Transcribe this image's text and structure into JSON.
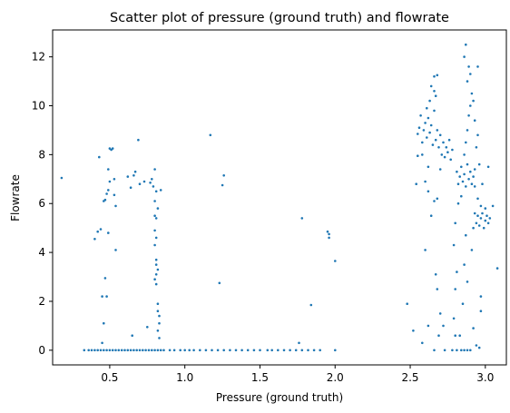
{
  "chart_data": {
    "type": "scatter",
    "title": "Scatter plot of pressure (ground truth) and flowrate",
    "xlabel": "Pressure (ground truth)",
    "ylabel": "Flowrate",
    "xlim": [
      0.12,
      3.14
    ],
    "ylim": [
      -0.6,
      13.1
    ],
    "xticks": [
      0.5,
      1.0,
      1.5,
      2.0,
      2.5,
      3.0
    ],
    "xtick_labels": [
      "0.5",
      "1.0",
      "1.5",
      "2.0",
      "2.5",
      "3.0"
    ],
    "yticks": [
      0,
      2,
      4,
      6,
      8,
      10,
      12
    ],
    "ytick_labels": [
      "0",
      "2",
      "4",
      "6",
      "8",
      "10",
      "12"
    ],
    "grid": false,
    "marker_color": "#1f77b4",
    "series": [
      {
        "values": [
          [
            0.33,
            0
          ],
          [
            0.36,
            0
          ],
          [
            0.38,
            0
          ],
          [
            0.4,
            0
          ],
          [
            0.42,
            0
          ],
          [
            0.44,
            0
          ],
          [
            0.46,
            0
          ],
          [
            0.48,
            0
          ],
          [
            0.5,
            0
          ],
          [
            0.52,
            0
          ],
          [
            0.54,
            0
          ],
          [
            0.56,
            0
          ],
          [
            0.58,
            0
          ],
          [
            0.6,
            0
          ],
          [
            0.62,
            0
          ],
          [
            0.64,
            0
          ],
          [
            0.66,
            0
          ],
          [
            0.68,
            0
          ],
          [
            0.7,
            0
          ],
          [
            0.72,
            0
          ],
          [
            0.74,
            0
          ],
          [
            0.76,
            0
          ],
          [
            0.78,
            0
          ],
          [
            0.8,
            0
          ],
          [
            0.82,
            0
          ],
          [
            0.84,
            0
          ],
          [
            0.86,
            0
          ],
          [
            0.9,
            0
          ],
          [
            0.93,
            0
          ],
          [
            0.97,
            0
          ],
          [
            1.0,
            0
          ],
          [
            1.03,
            0
          ],
          [
            1.06,
            0
          ],
          [
            1.1,
            0
          ],
          [
            1.14,
            0
          ],
          [
            1.18,
            0
          ],
          [
            1.22,
            0
          ],
          [
            1.26,
            0
          ],
          [
            1.3,
            0
          ],
          [
            1.34,
            0
          ],
          [
            1.38,
            0
          ],
          [
            1.42,
            0
          ],
          [
            1.46,
            0
          ],
          [
            1.5,
            0
          ],
          [
            1.55,
            0
          ],
          [
            1.58,
            0
          ],
          [
            1.62,
            0
          ],
          [
            1.66,
            0
          ],
          [
            1.7,
            0
          ],
          [
            1.74,
            0
          ],
          [
            1.78,
            0
          ],
          [
            1.82,
            0
          ],
          [
            1.86,
            0
          ],
          [
            1.9,
            0
          ],
          [
            2.0,
            0
          ],
          [
            0.18,
            7.05
          ],
          [
            0.4,
            4.55
          ],
          [
            0.42,
            4.85
          ],
          [
            0.43,
            7.9
          ],
          [
            0.44,
            4.95
          ],
          [
            0.45,
            2.2
          ],
          [
            0.45,
            0.3
          ],
          [
            0.46,
            6.1
          ],
          [
            0.46,
            1.1
          ],
          [
            0.47,
            2.95
          ],
          [
            0.47,
            6.15
          ],
          [
            0.48,
            6.4
          ],
          [
            0.48,
            2.2
          ],
          [
            0.49,
            6.55
          ],
          [
            0.49,
            4.8
          ],
          [
            0.49,
            7.4
          ],
          [
            0.5,
            8.25
          ],
          [
            0.5,
            6.9
          ],
          [
            0.51,
            8.2
          ],
          [
            0.52,
            8.25
          ],
          [
            0.53,
            6.35
          ],
          [
            0.53,
            7.0
          ],
          [
            0.54,
            5.9
          ],
          [
            0.54,
            4.1
          ],
          [
            0.62,
            7.1
          ],
          [
            0.64,
            6.65
          ],
          [
            0.65,
            0.6
          ],
          [
            0.66,
            7.15
          ],
          [
            0.67,
            7.3
          ],
          [
            0.69,
            8.6
          ],
          [
            0.7,
            6.8
          ],
          [
            0.73,
            6.9
          ],
          [
            0.75,
            0.95
          ],
          [
            0.77,
            6.85
          ],
          [
            0.78,
            7.0
          ],
          [
            0.79,
            6.7
          ],
          [
            0.8,
            7.4
          ],
          [
            0.81,
            6.5
          ],
          [
            0.8,
            5.5
          ],
          [
            0.81,
            5.4
          ],
          [
            0.8,
            4.9
          ],
          [
            0.81,
            4.6
          ],
          [
            0.8,
            4.3
          ],
          [
            0.81,
            3.7
          ],
          [
            0.81,
            3.5
          ],
          [
            0.82,
            3.3
          ],
          [
            0.81,
            3.1
          ],
          [
            0.8,
            2.9
          ],
          [
            0.81,
            2.7
          ],
          [
            0.82,
            1.9
          ],
          [
            0.82,
            1.6
          ],
          [
            0.83,
            1.4
          ],
          [
            0.83,
            1.1
          ],
          [
            0.82,
            0.8
          ],
          [
            0.83,
            0.5
          ],
          [
            0.84,
            6.55
          ],
          [
            0.8,
            6.1
          ],
          [
            0.82,
            5.8
          ],
          [
            1.17,
            8.8
          ],
          [
            1.23,
            2.75
          ],
          [
            1.25,
            6.75
          ],
          [
            1.26,
            7.15
          ],
          [
            1.78,
            5.4
          ],
          [
            1.84,
            1.85
          ],
          [
            1.76,
            0.3
          ],
          [
            1.95,
            4.85
          ],
          [
            1.96,
            4.75
          ],
          [
            1.96,
            4.6
          ],
          [
            2.0,
            3.65
          ],
          [
            2.48,
            1.9
          ],
          [
            2.52,
            0.8
          ],
          [
            2.55,
            8.85
          ],
          [
            2.56,
            9.1
          ],
          [
            2.57,
            9.6
          ],
          [
            2.58,
            8.5
          ],
          [
            2.59,
            9.0
          ],
          [
            2.6,
            9.3
          ],
          [
            2.61,
            8.7
          ],
          [
            2.62,
            9.5
          ],
          [
            2.63,
            8.9
          ],
          [
            2.64,
            9.2
          ],
          [
            2.65,
            8.4
          ],
          [
            2.66,
            9.8
          ],
          [
            2.67,
            8.6
          ],
          [
            2.68,
            9.0
          ],
          [
            2.69,
            8.3
          ],
          [
            2.7,
            8.8
          ],
          [
            2.71,
            8.0
          ],
          [
            2.72,
            8.5
          ],
          [
            2.73,
            7.9
          ],
          [
            2.74,
            8.3
          ],
          [
            2.75,
            8.1
          ],
          [
            2.76,
            8.6
          ],
          [
            2.77,
            7.8
          ],
          [
            2.78,
            8.2
          ],
          [
            2.58,
            8.0
          ],
          [
            2.61,
            9.9
          ],
          [
            2.63,
            10.2
          ],
          [
            2.64,
            10.8
          ],
          [
            2.66,
            11.2
          ],
          [
            2.68,
            11.25
          ],
          [
            2.66,
            10.6
          ],
          [
            2.67,
            10.4
          ],
          [
            2.62,
            7.5
          ],
          [
            2.6,
            6.9
          ],
          [
            2.55,
            7.95
          ],
          [
            2.54,
            6.8
          ],
          [
            2.62,
            6.5
          ],
          [
            2.66,
            6.1
          ],
          [
            2.64,
            5.5
          ],
          [
            2.6,
            4.1
          ],
          [
            2.67,
            3.1
          ],
          [
            2.68,
            2.5
          ],
          [
            2.7,
            1.5
          ],
          [
            2.72,
            1.0
          ],
          [
            2.73,
            0.0
          ],
          [
            2.58,
            0.3
          ],
          [
            2.62,
            1.0
          ],
          [
            2.66,
            0.0
          ],
          [
            2.68,
            6.2
          ],
          [
            2.7,
            7.4
          ],
          [
            2.69,
            0.6
          ],
          [
            2.81,
            7.3
          ],
          [
            2.82,
            6.8
          ],
          [
            2.83,
            7.1
          ],
          [
            2.84,
            7.5
          ],
          [
            2.85,
            6.9
          ],
          [
            2.86,
            7.2
          ],
          [
            2.87,
            6.7
          ],
          [
            2.88,
            7.6
          ],
          [
            2.89,
            7.0
          ],
          [
            2.9,
            7.3
          ],
          [
            2.91,
            6.8
          ],
          [
            2.92,
            7.1
          ],
          [
            2.93,
            7.4
          ],
          [
            2.86,
            8.0
          ],
          [
            2.87,
            8.5
          ],
          [
            2.88,
            9.0
          ],
          [
            2.89,
            9.6
          ],
          [
            2.9,
            10.0
          ],
          [
            2.91,
            10.5
          ],
          [
            2.88,
            11.0
          ],
          [
            2.89,
            11.6
          ],
          [
            2.86,
            12.0
          ],
          [
            2.87,
            12.5
          ],
          [
            2.9,
            11.3
          ],
          [
            2.92,
            10.2
          ],
          [
            2.93,
            9.4
          ],
          [
            2.95,
            8.8
          ],
          [
            2.94,
            8.3
          ],
          [
            2.96,
            7.6
          ],
          [
            2.98,
            6.8
          ],
          [
            2.84,
            6.3
          ],
          [
            2.82,
            6.0
          ],
          [
            2.8,
            5.2
          ],
          [
            2.79,
            4.3
          ],
          [
            2.81,
            3.2
          ],
          [
            2.8,
            2.5
          ],
          [
            2.79,
            1.3
          ],
          [
            2.8,
            0.6
          ],
          [
            2.81,
            0.0
          ],
          [
            2.78,
            0.0
          ],
          [
            2.83,
            0.6
          ],
          [
            2.85,
            1.9
          ],
          [
            2.86,
            3.5
          ],
          [
            2.87,
            4.7
          ],
          [
            2.88,
            2.8
          ],
          [
            2.9,
            0.0
          ],
          [
            2.92,
            0.9
          ],
          [
            2.84,
            0.0
          ],
          [
            2.86,
            0.0
          ],
          [
            2.88,
            0.0
          ],
          [
            2.95,
            11.6
          ],
          [
            3.02,
            7.5
          ],
          [
            2.94,
            5.2
          ],
          [
            2.95,
            5.5
          ],
          [
            2.96,
            5.1
          ],
          [
            2.97,
            5.4
          ],
          [
            2.98,
            5.6
          ],
          [
            2.99,
            5.0
          ],
          [
            3.0,
            5.3
          ],
          [
            3.01,
            5.5
          ],
          [
            3.02,
            5.2
          ],
          [
            3.03,
            5.4
          ],
          [
            3.0,
            5.8
          ],
          [
            2.97,
            5.9
          ],
          [
            2.95,
            6.2
          ],
          [
            2.93,
            5.6
          ],
          [
            3.05,
            5.9
          ],
          [
            3.08,
            3.35
          ],
          [
            2.97,
            2.2
          ],
          [
            2.96,
            0.1
          ],
          [
            2.94,
            0.2
          ],
          [
            2.97,
            1.6
          ],
          [
            2.91,
            4.1
          ],
          [
            2.92,
            5.0
          ],
          [
            2.93,
            6.7
          ]
        ]
      }
    ]
  }
}
